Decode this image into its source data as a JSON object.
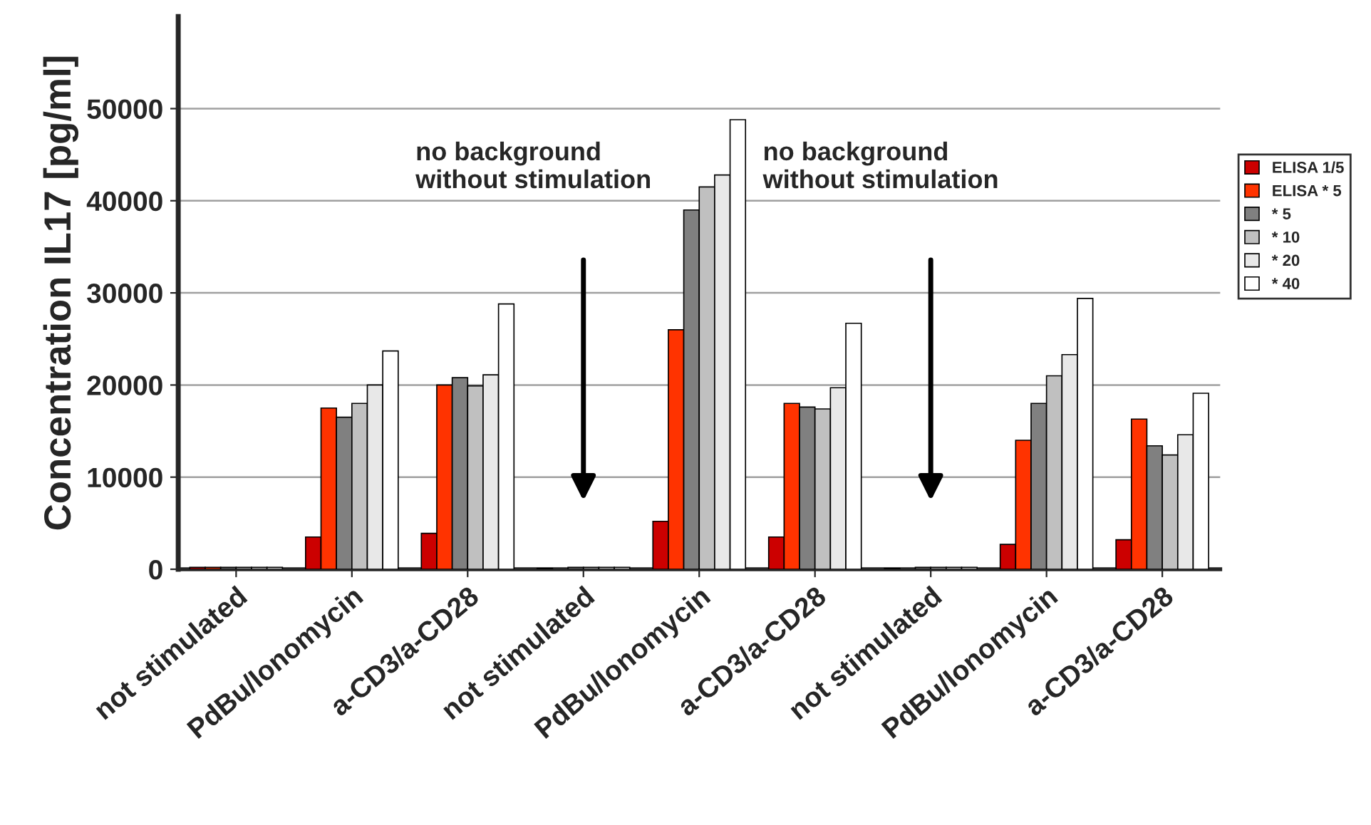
{
  "chart_data": {
    "type": "bar",
    "ylabel": "Concentration IL17 [pg/ml]",
    "categories": [
      "not stimulated",
      "PdBu/Ionomycin",
      "a-CD3/a-CD28",
      "not stimulated",
      "PdBu/Ionomycin",
      "a-CD3/a-CD28",
      "not stimulated",
      "PdBu/Ionomycin",
      "a-CD3/a-CD28"
    ],
    "series": [
      {
        "name": "ELISA 1/5",
        "color": "#cc0000",
        "values": [
          200,
          3500,
          3900,
          100,
          5200,
          3500,
          100,
          2700,
          3200
        ]
      },
      {
        "name": "ELISA * 5",
        "color": "#ff3300",
        "values": [
          200,
          17500,
          20000,
          null,
          26000,
          18000,
          null,
          14000,
          16300
        ]
      },
      {
        "name": "* 5",
        "color": "#808080",
        "values": [
          200,
          16500,
          20800,
          200,
          39000,
          17600,
          200,
          18000,
          13400
        ]
      },
      {
        "name": "* 10",
        "color": "#c0c0c0",
        "values": [
          200,
          18000,
          19900,
          200,
          41500,
          17400,
          200,
          21000,
          12400
        ]
      },
      {
        "name": "* 20",
        "color": "#e8e8e8",
        "values": [
          200,
          20000,
          21100,
          200,
          42800,
          19700,
          200,
          23300,
          14600
        ]
      },
      {
        "name": "* 40",
        "color": "#ffffff",
        "values": [
          200,
          23700,
          28800,
          200,
          48800,
          26700,
          200,
          29400,
          19100
        ]
      }
    ],
    "ylim": [
      0,
      60000
    ],
    "yticks": [
      0,
      10000,
      20000,
      30000,
      40000,
      50000
    ],
    "grid": "y",
    "legend": "right",
    "annotations": [
      "no background\nwithout stimulation",
      "no background\nwithout stimulation"
    ]
  }
}
